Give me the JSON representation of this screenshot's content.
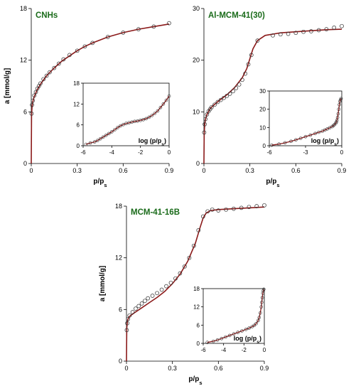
{
  "chart_data": [
    {
      "type": "scatter",
      "title": "CNHs",
      "xlabel": "p/ps",
      "ylabel": "a [mmol/g]",
      "xlim": [
        0,
        0.9
      ],
      "ylim": [
        0,
        18
      ],
      "xticks": [
        "0",
        "0.3",
        "0.6",
        "0.9"
      ],
      "yticks": [
        "0",
        "6",
        "12",
        "18"
      ],
      "series": [
        {
          "values_x": [
            0.002,
            0.005,
            0.01,
            0.02,
            0.03,
            0.04,
            0.05,
            0.06,
            0.08,
            0.1,
            0.12,
            0.15,
            0.18,
            0.21,
            0.25,
            0.3,
            0.35,
            0.4,
            0.5,
            0.6,
            0.7,
            0.8,
            0.9
          ],
          "values_y": [
            5.8,
            6.8,
            7.3,
            7.9,
            8.3,
            8.7,
            9.0,
            9.3,
            9.8,
            10.2,
            10.6,
            11.1,
            11.6,
            12.1,
            12.6,
            13.1,
            13.6,
            14.0,
            14.7,
            15.2,
            15.6,
            15.9,
            16.3
          ]
        },
        {
          "curve_x": [
            0,
            0.002,
            0.005,
            0.01,
            0.02,
            0.04,
            0.06,
            0.08,
            0.1,
            0.15,
            0.2,
            0.25,
            0.3,
            0.35,
            0.4,
            0.5,
            0.6,
            0.7,
            0.8,
            0.9
          ],
          "curve_y": [
            0,
            5.5,
            6.6,
            7.2,
            7.8,
            8.6,
            9.2,
            9.7,
            10.2,
            11.1,
            11.9,
            12.5,
            13.1,
            13.6,
            14.0,
            14.7,
            15.2,
            15.6,
            15.9,
            16.2
          ]
        }
      ],
      "inset": {
        "xlabel": "log (p/ps)",
        "xlim": [
          -6,
          0
        ],
        "ylim": [
          0,
          18
        ],
        "xticks": [
          "-6",
          "-4",
          "-2",
          "0"
        ],
        "yticks": [
          "0",
          "6",
          "12",
          "18"
        ],
        "values_x": [
          -5.8,
          -5.5,
          -5.2,
          -5.0,
          -4.8,
          -4.6,
          -4.4,
          -4.2,
          -4.0,
          -3.8,
          -3.6,
          -3.4,
          -3.2,
          -3.0,
          -2.8,
          -2.6,
          -2.4,
          -2.2,
          -2.0,
          -1.8,
          -1.6,
          -1.4,
          -1.2,
          -1.0,
          -0.8,
          -0.6,
          -0.4,
          -0.2,
          0.0
        ],
        "values_y": [
          0.4,
          0.8,
          1.1,
          1.5,
          2.0,
          2.5,
          3.0,
          3.5,
          4.0,
          4.6,
          5.2,
          5.7,
          6.1,
          6.4,
          6.6,
          6.8,
          7.0,
          7.1,
          7.3,
          7.5,
          7.8,
          8.2,
          8.7,
          9.3,
          10.0,
          11.0,
          12.0,
          13.1,
          14.3
        ]
      }
    },
    {
      "type": "scatter",
      "title": "Al-MCM-41(30)",
      "xlabel": "p/ps",
      "ylabel": "",
      "xlim": [
        0,
        0.9
      ],
      "ylim": [
        0,
        30
      ],
      "xticks": [
        "0",
        "0.3",
        "0.6",
        "0.9"
      ],
      "yticks": [
        "0",
        "10",
        "20",
        "30"
      ],
      "series": [
        {
          "values_x": [
            0.002,
            0.005,
            0.01,
            0.02,
            0.03,
            0.04,
            0.05,
            0.07,
            0.09,
            0.11,
            0.13,
            0.15,
            0.17,
            0.19,
            0.21,
            0.23,
            0.25,
            0.27,
            0.29,
            0.31,
            0.35,
            0.45,
            0.5,
            0.55,
            0.6,
            0.65,
            0.7,
            0.75,
            0.8,
            0.85,
            0.9
          ],
          "values_y": [
            6.0,
            7.6,
            8.6,
            9.5,
            10.1,
            10.5,
            10.9,
            11.4,
            11.9,
            12.3,
            12.7,
            13.1,
            13.5,
            14.0,
            14.6,
            15.3,
            16.2,
            17.4,
            19.2,
            21.0,
            23.8,
            24.8,
            25.0,
            25.1,
            25.3,
            25.5,
            25.6,
            25.8,
            26.0,
            26.3,
            26.6
          ]
        },
        {
          "curve_x": [
            0,
            0.002,
            0.005,
            0.01,
            0.02,
            0.04,
            0.06,
            0.1,
            0.15,
            0.2,
            0.25,
            0.28,
            0.3,
            0.32,
            0.35,
            0.4,
            0.5,
            0.6,
            0.7,
            0.8,
            0.9
          ],
          "curve_y": [
            0,
            5.8,
            7.5,
            8.6,
            9.5,
            10.6,
            11.2,
            12.2,
            13.3,
            14.7,
            16.6,
            18.4,
            20.3,
            22.2,
            23.8,
            24.8,
            25.3,
            25.5,
            25.7,
            25.9,
            26.0
          ]
        }
      ],
      "inset": {
        "xlabel": "log (p/ps)",
        "xlim": [
          -6,
          0
        ],
        "ylim": [
          0,
          30
        ],
        "xticks": [
          "-6",
          "-3",
          "0"
        ],
        "yticks": [
          "0",
          "10",
          "20",
          "30"
        ],
        "values_x": [
          -5.8,
          -5.2,
          -4.7,
          -4.2,
          -3.8,
          -3.4,
          -3.0,
          -2.6,
          -2.2,
          -1.9,
          -1.6,
          -1.4,
          -1.2,
          -1.0,
          -0.8,
          -0.7,
          -0.6,
          -0.5,
          -0.45,
          -0.4,
          -0.35,
          -0.3,
          -0.25,
          -0.2,
          -0.15,
          -0.1,
          -0.05
        ],
        "values_y": [
          0.3,
          0.9,
          1.6,
          2.4,
          3.2,
          4.1,
          5.0,
          5.8,
          6.7,
          7.4,
          8.0,
          8.6,
          9.2,
          9.8,
          10.5,
          11.0,
          11.6,
          12.3,
          13.0,
          14.0,
          15.5,
          17.5,
          20.0,
          22.5,
          24.3,
          25.2,
          25.8
        ]
      }
    },
    {
      "type": "scatter",
      "title": "MCM-41-16B",
      "xlabel": "p/ps",
      "ylabel": "a [mmol/g]",
      "xlim": [
        0,
        0.9
      ],
      "ylim": [
        0,
        18
      ],
      "xticks": [
        "0",
        "0.3",
        "0.6",
        "0.9"
      ],
      "yticks": [
        "0",
        "6",
        "12",
        "18"
      ],
      "series": [
        {
          "values_x": [
            0.002,
            0.005,
            0.01,
            0.02,
            0.04,
            0.06,
            0.08,
            0.1,
            0.12,
            0.14,
            0.17,
            0.2,
            0.23,
            0.26,
            0.29,
            0.32,
            0.35,
            0.38,
            0.41,
            0.44,
            0.47,
            0.5,
            0.53,
            0.56,
            0.6,
            0.65,
            0.7,
            0.75,
            0.8,
            0.85,
            0.9
          ],
          "values_y": [
            3.6,
            4.4,
            4.9,
            5.3,
            5.7,
            6.1,
            6.4,
            6.7,
            7.0,
            7.3,
            7.6,
            7.9,
            8.3,
            8.7,
            9.1,
            9.6,
            10.2,
            11.0,
            12.0,
            13.4,
            15.2,
            16.8,
            17.4,
            17.6,
            17.5,
            17.6,
            17.7,
            17.8,
            17.9,
            18.0,
            18.1
          ]
        },
        {
          "curve_x": [
            0,
            0.002,
            0.005,
            0.01,
            0.02,
            0.05,
            0.1,
            0.15,
            0.2,
            0.25,
            0.3,
            0.35,
            0.4,
            0.45,
            0.48,
            0.5,
            0.52,
            0.55,
            0.6,
            0.7,
            0.8,
            0.9
          ],
          "curve_y": [
            0,
            3.8,
            4.5,
            4.9,
            5.2,
            5.6,
            6.2,
            6.8,
            7.4,
            8.1,
            9.0,
            10.1,
            11.6,
            13.7,
            15.5,
            16.6,
            17.2,
            17.5,
            17.6,
            17.7,
            17.8,
            17.9
          ]
        }
      ],
      "inset": {
        "xlabel": "log (p/ps)",
        "xlim": [
          -6,
          0
        ],
        "ylim": [
          0,
          18
        ],
        "xticks": [
          "-6",
          "-4",
          "-2",
          "0"
        ],
        "yticks": [
          "0",
          "6",
          "12",
          "18"
        ],
        "values_x": [
          -5.6,
          -5.0,
          -4.6,
          -4.2,
          -3.8,
          -3.4,
          -3.0,
          -2.6,
          -2.2,
          -1.8,
          -1.5,
          -1.2,
          -1.0,
          -0.8,
          -0.6,
          -0.5,
          -0.4,
          -0.3,
          -0.25,
          -0.2,
          -0.15,
          -0.1,
          -0.05
        ],
        "values_y": [
          0.3,
          0.7,
          1.1,
          1.6,
          2.1,
          2.6,
          3.1,
          3.6,
          4.1,
          4.6,
          5.0,
          5.5,
          5.9,
          6.5,
          7.5,
          8.5,
          10.0,
          12.0,
          13.5,
          15.0,
          16.5,
          17.3,
          17.8
        ]
      }
    }
  ]
}
